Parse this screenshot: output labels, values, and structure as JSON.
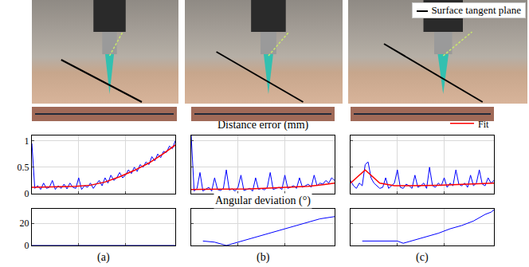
{
  "figure": {
    "type": "figure with photographs",
    "photo_legend": "Surface tangent plane",
    "row_titles": [
      "Distance error (mm)",
      "Angular deviation (°)"
    ],
    "panel_labels": [
      "(a)",
      "(b)",
      "(c)"
    ]
  },
  "chart_data": [
    {
      "type": "line",
      "xlim": [
        0,
        49
      ],
      "xticks": [
        16,
        32
      ],
      "ylim": [
        0,
        1.1
      ],
      "yticks": [
        0,
        0.5,
        1
      ],
      "grid": true,
      "tick_labels": "y",
      "series": [
        {
          "color": "#0000ff",
          "x": [
            0,
            1,
            2,
            3,
            4,
            5,
            6,
            7,
            8,
            9,
            10,
            11,
            12,
            13,
            14,
            15,
            16,
            17,
            18,
            19,
            20,
            21,
            22,
            23,
            24,
            25,
            26,
            27,
            28,
            29,
            30,
            31,
            32,
            33,
            34,
            35,
            36,
            37,
            38,
            39,
            40,
            41,
            42,
            43,
            44,
            45,
            46,
            47,
            48,
            49
          ],
          "values": [
            0.95,
            0.1,
            0.15,
            0.08,
            0.2,
            0.1,
            0.12,
            0.25,
            0.08,
            0.15,
            0.1,
            0.18,
            0.09,
            0.2,
            0.12,
            0.1,
            0.3,
            0.08,
            0.15,
            0.12,
            0.2,
            0.1,
            0.18,
            0.25,
            0.15,
            0.3,
            0.2,
            0.35,
            0.25,
            0.3,
            0.4,
            0.3,
            0.35,
            0.45,
            0.38,
            0.5,
            0.42,
            0.55,
            0.5,
            0.6,
            0.55,
            0.7,
            0.62,
            0.75,
            0.68,
            0.8,
            0.78,
            0.9,
            0.85,
            1.0
          ]
        },
        {
          "name": "Fit",
          "color": "#ff0000",
          "x": [
            0,
            5,
            10,
            15,
            20,
            25,
            30,
            35,
            40,
            45,
            49
          ],
          "values": [
            0.12,
            0.12,
            0.13,
            0.14,
            0.16,
            0.22,
            0.32,
            0.44,
            0.58,
            0.76,
            0.92
          ]
        }
      ]
    },
    {
      "type": "line",
      "xlim": [
        0,
        49
      ],
      "xticks": [
        16,
        32
      ],
      "ylim": [
        0,
        1.1
      ],
      "yticks": [
        0,
        0.5,
        1
      ],
      "grid": true,
      "tick_labels": false,
      "series": [
        {
          "color": "#0000ff",
          "x": [
            0,
            1,
            2,
            3,
            4,
            5,
            6,
            7,
            8,
            9,
            10,
            11,
            12,
            13,
            14,
            15,
            16,
            17,
            18,
            19,
            20,
            21,
            22,
            23,
            24,
            25,
            26,
            27,
            28,
            29,
            30,
            31,
            32,
            33,
            34,
            35,
            36,
            37,
            38,
            39,
            40,
            41,
            42,
            43,
            44,
            45,
            46,
            47,
            48,
            49
          ],
          "values": [
            1.1,
            0.05,
            0.1,
            0.4,
            0.05,
            0.08,
            0.12,
            0.05,
            0.3,
            0.08,
            0.06,
            0.1,
            0.45,
            0.07,
            0.09,
            0.05,
            0.12,
            0.35,
            0.06,
            0.08,
            0.1,
            0.05,
            0.3,
            0.08,
            0.1,
            0.07,
            0.12,
            0.4,
            0.08,
            0.1,
            0.12,
            0.08,
            0.35,
            0.1,
            0.12,
            0.15,
            0.1,
            0.3,
            0.12,
            0.15,
            0.18,
            0.12,
            0.35,
            0.15,
            0.2,
            0.18,
            0.25,
            0.2,
            0.3,
            0.25
          ]
        },
        {
          "name": "Fit",
          "color": "#ff0000",
          "x": [
            0,
            5,
            10,
            15,
            20,
            25,
            30,
            35,
            40,
            45,
            49
          ],
          "values": [
            0.08,
            0.08,
            0.08,
            0.09,
            0.09,
            0.1,
            0.11,
            0.12,
            0.14,
            0.17,
            0.2
          ]
        }
      ]
    },
    {
      "type": "line",
      "xlim": [
        0,
        49
      ],
      "xticks": [
        16,
        32
      ],
      "ylim": [
        0,
        1.1
      ],
      "yticks": [
        0,
        0.5,
        1
      ],
      "grid": true,
      "tick_labels": false,
      "legend": "top right",
      "series": [
        {
          "color": "#0000ff",
          "x": [
            0,
            1,
            2,
            3,
            4,
            5,
            6,
            7,
            8,
            9,
            10,
            11,
            12,
            13,
            14,
            15,
            16,
            17,
            18,
            19,
            20,
            21,
            22,
            23,
            24,
            25,
            26,
            27,
            28,
            29,
            30,
            31,
            32,
            33,
            34,
            35,
            36,
            37,
            38,
            39,
            40,
            41,
            42,
            43,
            44,
            45,
            46,
            47,
            48,
            49
          ],
          "values": [
            0.25,
            0.15,
            0.1,
            0.2,
            0.15,
            0.55,
            0.6,
            0.3,
            0.2,
            0.15,
            0.1,
            0.12,
            0.3,
            0.1,
            0.15,
            0.2,
            0.45,
            0.12,
            0.1,
            0.18,
            0.15,
            0.1,
            0.35,
            0.12,
            0.15,
            0.2,
            0.1,
            0.5,
            0.15,
            0.12,
            0.2,
            0.15,
            0.3,
            0.12,
            0.2,
            0.15,
            0.45,
            0.18,
            0.15,
            0.2,
            0.12,
            0.35,
            0.15,
            0.2,
            0.45,
            0.18,
            0.15,
            0.3,
            0.2,
            0.25
          ]
        },
        {
          "name": "Fit",
          "color": "#ff0000",
          "x": [
            0,
            5,
            10,
            15,
            20,
            25,
            30,
            35,
            40,
            45,
            49
          ],
          "values": [
            0.2,
            0.45,
            0.2,
            0.15,
            0.15,
            0.15,
            0.16,
            0.17,
            0.18,
            0.19,
            0.2
          ]
        }
      ]
    },
    {
      "type": "line",
      "xlim": [
        0,
        49
      ],
      "xticks": [
        16,
        32
      ],
      "ylim": [
        0,
        33
      ],
      "yticks": [
        0,
        20
      ],
      "grid": true,
      "tick_labels": "y",
      "series": [
        {
          "color": "#0000ff",
          "x": [
            0,
            10,
            20,
            30,
            40,
            49
          ],
          "values": [
            0,
            0,
            0,
            0,
            0,
            0
          ]
        }
      ]
    },
    {
      "type": "line",
      "xlim": [
        0,
        49
      ],
      "xticks": [
        16,
        32
      ],
      "ylim": [
        0,
        33
      ],
      "yticks": [
        0,
        20
      ],
      "grid": true,
      "tick_labels": false,
      "series": [
        {
          "color": "#0000ff",
          "x": [
            4,
            8,
            12,
            16,
            20,
            24,
            28,
            32,
            36,
            40,
            44,
            49
          ],
          "values": [
            4,
            3,
            0,
            3,
            6,
            9,
            12,
            15,
            18,
            21,
            24,
            26
          ]
        }
      ]
    },
    {
      "type": "line",
      "xlim": [
        0,
        49
      ],
      "xticks": [
        16,
        32
      ],
      "ylim": [
        0,
        33
      ],
      "yticks": [
        0,
        20
      ],
      "grid": true,
      "tick_labels": false,
      "series": [
        {
          "color": "#0000ff",
          "x": [
            4,
            10,
            16,
            18,
            22,
            26,
            30,
            34,
            38,
            42,
            46,
            48,
            49
          ],
          "values": [
            4,
            4,
            4,
            2,
            5,
            8,
            11,
            15,
            18,
            22,
            28,
            30,
            32
          ]
        }
      ]
    }
  ]
}
